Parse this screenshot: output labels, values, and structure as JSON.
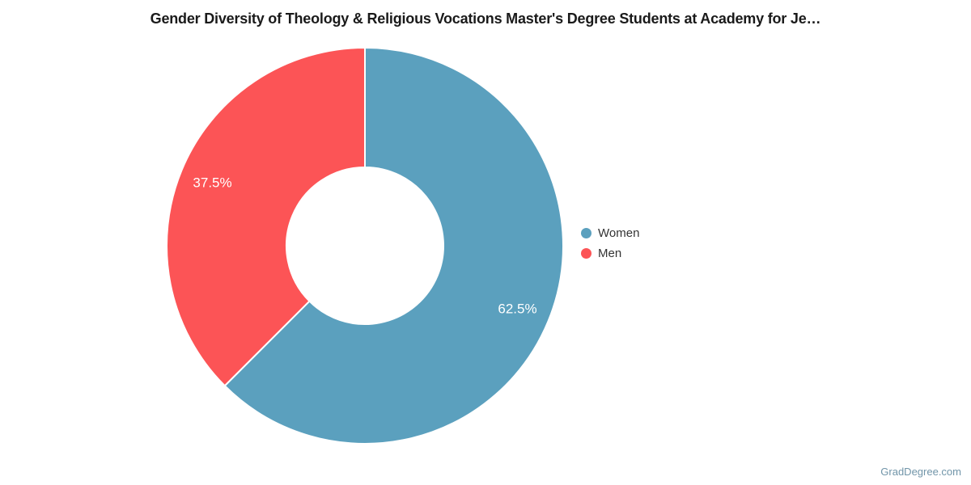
{
  "title": "Gender Diversity of Theology & Religious Vocations Master's Degree Students at Academy for Je…",
  "watermark": "GradDegree.com",
  "chart_data": {
    "type": "pie",
    "subtype": "donut",
    "title": "Gender Diversity of Theology & Religious Vocations Master's Degree Students at Academy for Je…",
    "categories": [
      "Women",
      "Men"
    ],
    "values": [
      62.5,
      37.5
    ],
    "labels": [
      "62.5%",
      "37.5%"
    ],
    "colors": [
      "#5ba0be",
      "#fc5456"
    ],
    "slice_border_color": "#ffffff",
    "start_angle_deg_clockwise_from_top": 0,
    "legend_position": "right",
    "inner_radius_ratio": 0.4
  }
}
